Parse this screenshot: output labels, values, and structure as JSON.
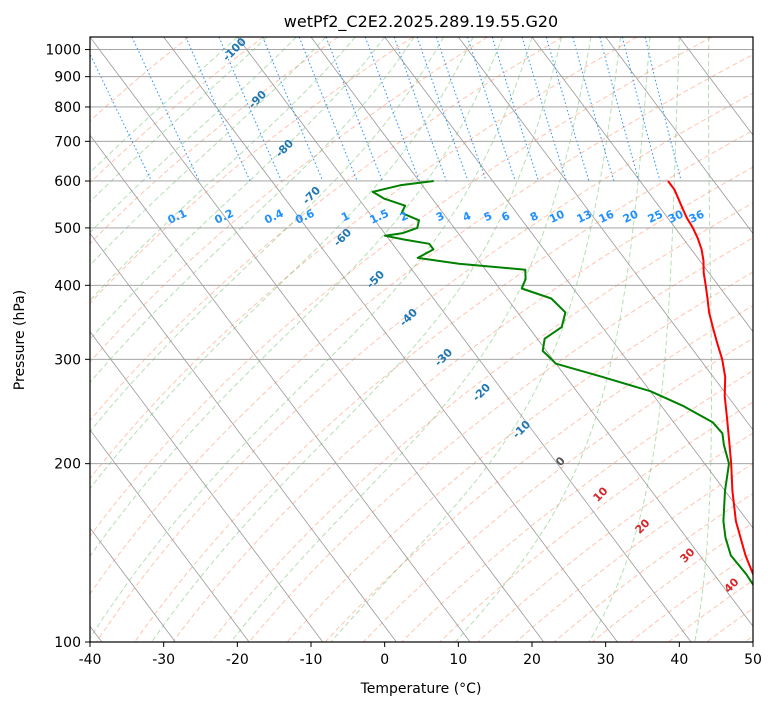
{
  "chart_data": {
    "type": "line",
    "diagram": "skew-T log-P",
    "title": "wetPf2_C2E2.2025.289.19.55.G20",
    "xlabel": "Temperature (°C)",
    "ylabel": "Pressure (hPa)",
    "xlim": [
      -40,
      50
    ],
    "ylim": [
      1050,
      100
    ],
    "y_scale": "log",
    "grid": true,
    "x_ticks": [
      -40,
      -30,
      -20,
      -10,
      0,
      10,
      20,
      30,
      40,
      50
    ],
    "y_ticks": [
      100,
      200,
      300,
      400,
      500,
      600,
      700,
      800,
      900,
      1000
    ],
    "series": [
      {
        "color": "#ff0000",
        "points": [
          {
            "p": 600,
            "t": 23.8
          },
          {
            "p": 580,
            "t": 23.8
          },
          {
            "p": 560,
            "t": 23.4
          },
          {
            "p": 540,
            "t": 23.0
          },
          {
            "p": 520,
            "t": 22.6
          },
          {
            "p": 500,
            "t": 22.4
          },
          {
            "p": 480,
            "t": 22.0
          },
          {
            "p": 460,
            "t": 21.4
          },
          {
            "p": 440,
            "t": 20.5
          },
          {
            "p": 420,
            "t": 19.3
          },
          {
            "p": 400,
            "t": 18.3
          },
          {
            "p": 380,
            "t": 17.2
          },
          {
            "p": 360,
            "t": 16.0
          },
          {
            "p": 340,
            "t": 15.0
          },
          {
            "p": 320,
            "t": 14.0
          },
          {
            "p": 300,
            "t": 13.0
          },
          {
            "p": 280,
            "t": 11.6
          },
          {
            "p": 260,
            "t": 9.6
          },
          {
            "p": 240,
            "t": 7.8
          },
          {
            "p": 220,
            "t": 5.8
          },
          {
            "p": 200,
            "t": 3.6
          },
          {
            "p": 180,
            "t": 1.0
          },
          {
            "p": 160,
            "t": -1.6
          },
          {
            "p": 140,
            "t": -3.8
          },
          {
            "p": 130,
            "t": -4.7
          },
          {
            "p": 120,
            "t": -5.6
          },
          {
            "p": 110,
            "t": -6.6
          },
          {
            "p": 100,
            "t": -7.6
          }
        ]
      },
      {
        "color": "#008000",
        "points": [
          {
            "p": 600,
            "t": -8.0
          },
          {
            "p": 590,
            "t": -13.0
          },
          {
            "p": 575,
            "t": -17.4
          },
          {
            "p": 560,
            "t": -16.5
          },
          {
            "p": 545,
            "t": -14.4
          },
          {
            "p": 530,
            "t": -15.6
          },
          {
            "p": 515,
            "t": -14.0
          },
          {
            "p": 500,
            "t": -15.0
          },
          {
            "p": 490,
            "t": -17.5
          },
          {
            "p": 485,
            "t": -20.2
          },
          {
            "p": 478,
            "t": -18.0
          },
          {
            "p": 470,
            "t": -15.0
          },
          {
            "p": 460,
            "t": -15.0
          },
          {
            "p": 445,
            "t": -18.0
          },
          {
            "p": 435,
            "t": -13.0
          },
          {
            "p": 425,
            "t": -4.6
          },
          {
            "p": 410,
            "t": -5.5
          },
          {
            "p": 395,
            "t": -7.0
          },
          {
            "p": 380,
            "t": -4.0
          },
          {
            "p": 360,
            "t": -3.5
          },
          {
            "p": 340,
            "t": -5.5
          },
          {
            "p": 325,
            "t": -9.0
          },
          {
            "p": 310,
            "t": -10.5
          },
          {
            "p": 295,
            "t": -10.0
          },
          {
            "p": 280,
            "t": -5.0
          },
          {
            "p": 265,
            "t": 0.0
          },
          {
            "p": 250,
            "t": 3.0
          },
          {
            "p": 235,
            "t": 5.3
          },
          {
            "p": 225,
            "t": 5.5
          },
          {
            "p": 215,
            "t": 4.5
          },
          {
            "p": 200,
            "t": 3.3
          },
          {
            "p": 180,
            "t": 0.0
          },
          {
            "p": 160,
            "t": -3.3
          },
          {
            "p": 150,
            "t": -4.7
          },
          {
            "p": 140,
            "t": -5.8
          },
          {
            "p": 130,
            "t": -5.6
          },
          {
            "p": 120,
            "t": -5.9
          },
          {
            "p": 110,
            "t": -6.6
          },
          {
            "p": 100,
            "t": -8.0
          }
        ]
      }
    ],
    "isotherm_labels": [
      "-100",
      "-90",
      "-80",
      "-70",
      "-60",
      "-50",
      "-40",
      "-30",
      "-20",
      "-10",
      "0",
      "10",
      "20",
      "30",
      "40"
    ],
    "mixing_ratio_labels": [
      "0.1",
      "0.2",
      "0.4",
      "0.6",
      "1",
      "1.5",
      "2",
      "3",
      "4",
      "5",
      "6",
      "8",
      "10",
      "13",
      "16",
      "20",
      "25",
      "30",
      "36"
    ]
  },
  "colors": {
    "temperature": "#ff0000",
    "dewpoint": "#008000",
    "isotherm_label_cold": "#1f77b4",
    "isotherm_label_warm": "#d62728",
    "mixing_ratio": "#1e90ff",
    "dry_adiabat": "#ff7f50",
    "moist_adiabat": "#2ca02c",
    "grid": "#999999"
  }
}
